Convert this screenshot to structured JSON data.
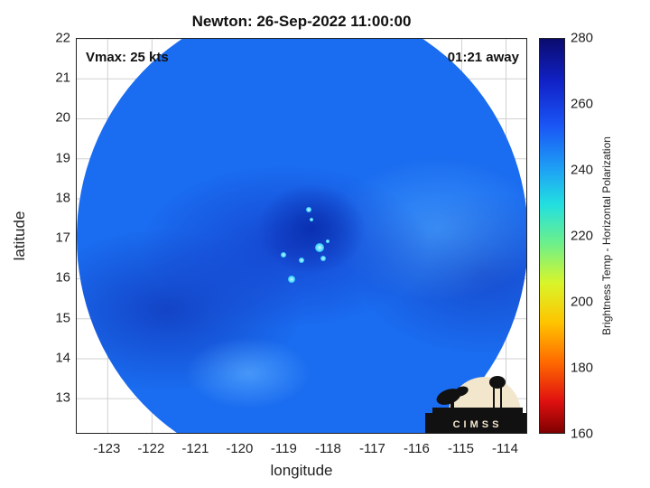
{
  "title": "Newton: 26-Sep-2022 11:00:00",
  "annotations": {
    "vmax": "Vmax: 25 kts",
    "time_away": "01:21 away"
  },
  "axes": {
    "xlabel": "longitude",
    "ylabel": "latitude",
    "xlim": [
      -123.7,
      -113.5
    ],
    "ylim": [
      12.1,
      22.0
    ],
    "xticks": [
      "-123",
      "-122",
      "-121",
      "-120",
      "-119",
      "-118",
      "-117",
      "-116",
      "-115",
      "-114"
    ],
    "yticks": [
      "13",
      "14",
      "15",
      "16",
      "17",
      "18",
      "19",
      "20",
      "21",
      "22"
    ],
    "grid": true
  },
  "colorbar": {
    "label": "Brightness Temp - Horizontal Polarization",
    "range": [
      160,
      280
    ],
    "ticks": [
      "280",
      "260",
      "240",
      "220",
      "200",
      "180",
      "160"
    ]
  },
  "logo": {
    "text": "CIMSS"
  },
  "colors": {
    "swath_base": "#1a6cf0",
    "cold_core": "#0a2fb0",
    "convective_speck": "#3ad3ff"
  }
}
